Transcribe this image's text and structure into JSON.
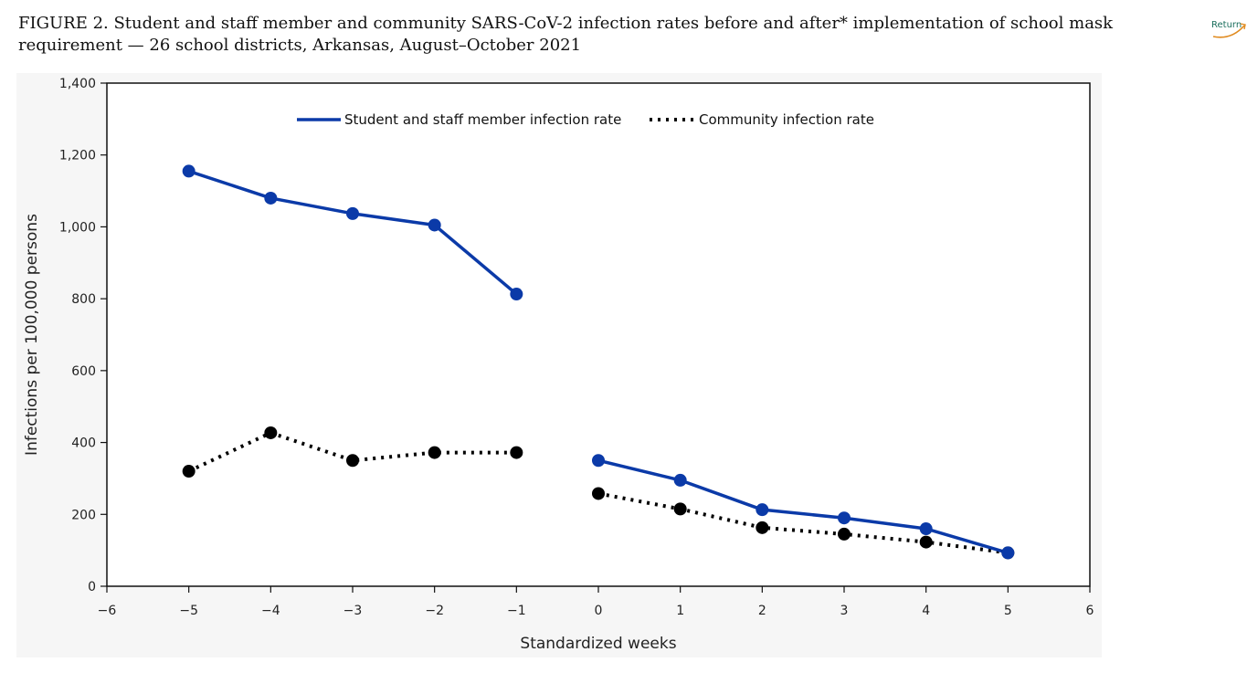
{
  "figure": {
    "title": "FIGURE 2. Student and staff member and community SARS-CoV-2 infection rates before and after* implementation of school mask requirement — 26 school districts, Arkansas, August–October 2021"
  },
  "nav": {
    "return_label": "Return",
    "return_icon": "curved-arrow-icon",
    "accent_color": "#e08a1e"
  },
  "chart_data": {
    "type": "line",
    "xlabel": "Standardized weeks",
    "ylabel": "Infections per 100,000 persons",
    "xlim": [
      -6,
      6
    ],
    "ylim": [
      0,
      1400
    ],
    "x_ticks": [
      -6,
      -5,
      -4,
      -3,
      -2,
      -1,
      0,
      1,
      2,
      3,
      4,
      5,
      6
    ],
    "x_tick_labels": [
      "−6",
      "−5",
      "−4",
      "−3",
      "−2",
      "−1",
      "0",
      "1",
      "2",
      "3",
      "4",
      "5",
      "6"
    ],
    "y_ticks": [
      0,
      200,
      400,
      600,
      800,
      1000,
      1200,
      1400
    ],
    "y_tick_labels": [
      "0",
      "200",
      "400",
      "600",
      "800",
      "1,000",
      "1,200",
      "1,400"
    ],
    "grid": false,
    "legend_position": "top",
    "series": [
      {
        "name": "Student and staff member infection rate",
        "style": "solid",
        "color": "#0b3aa8",
        "segments": [
          {
            "x": [
              -5,
              -4,
              -3,
              -2,
              -1
            ],
            "y": [
              1155,
              1080,
              1037,
              1005,
              813
            ]
          },
          {
            "x": [
              0,
              1,
              2,
              3,
              4,
              5
            ],
            "y": [
              350,
              295,
              213,
              190,
              160,
              93
            ]
          }
        ]
      },
      {
        "name": "Community infection rate",
        "style": "dotted",
        "color": "#000000",
        "segments": [
          {
            "x": [
              -5,
              -4,
              -3,
              -2,
              -1
            ],
            "y": [
              320,
              427,
              350,
              372,
              372
            ]
          },
          {
            "x": [
              0,
              1,
              2,
              3,
              4,
              5
            ],
            "y": [
              258,
              215,
              163,
              145,
              123,
              93
            ]
          }
        ]
      }
    ]
  }
}
